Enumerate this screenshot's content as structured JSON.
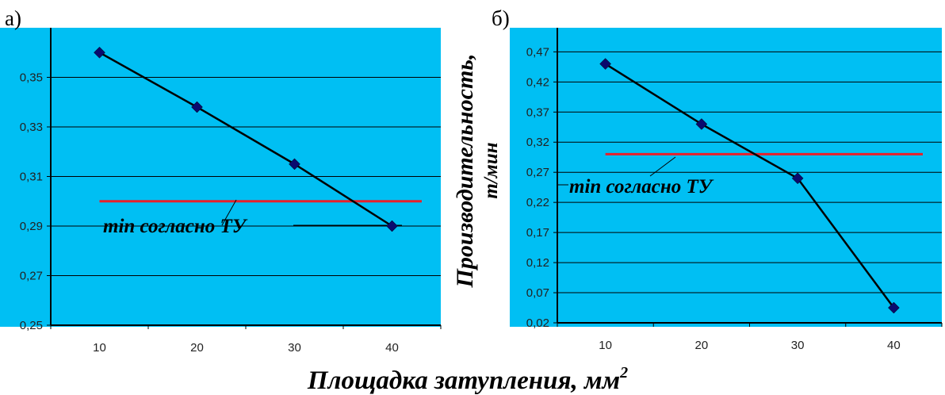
{
  "panel_labels": [
    "а)",
    "б)"
  ],
  "y_axis_label": "Производительность,",
  "y_axis_unit": "т/мин",
  "x_axis_label": "Площадка затупления, мм",
  "x_axis_label_sup": "2",
  "colors": {
    "plot_bg": "#00BFF3",
    "series": "#000000",
    "marker": "#0A0A6E",
    "min_line": "#E8202A",
    "grid": "#000000"
  },
  "chart_data": [
    {
      "type": "line",
      "panel": "а)",
      "x": [
        10,
        20,
        30,
        40
      ],
      "y": [
        0.36,
        0.338,
        0.315,
        0.29
      ],
      "y_ticks": [
        "0,25",
        "0,27",
        "0,29",
        "0,31",
        "0,33",
        "0,35"
      ],
      "x_ticks": [
        "10",
        "20",
        "30",
        "40"
      ],
      "ylim": [
        0.25,
        0.37
      ],
      "min_line": 0.3,
      "min_label": "min согласно ТУ",
      "grid": true
    },
    {
      "type": "line",
      "panel": "б)",
      "x": [
        10,
        20,
        30,
        40
      ],
      "y": [
        0.45,
        0.35,
        0.26,
        0.045
      ],
      "y_ticks": [
        "0,02",
        "0,07",
        "0,12",
        "0,17",
        "0,22",
        "0,27",
        "0,32",
        "0,37",
        "0,42",
        "0,47"
      ],
      "x_ticks": [
        "10",
        "20",
        "30",
        "40"
      ],
      "ylim": [
        0.02,
        0.51
      ],
      "min_line": 0.3,
      "min_label": "min согласно ТУ",
      "grid": true
    }
  ]
}
